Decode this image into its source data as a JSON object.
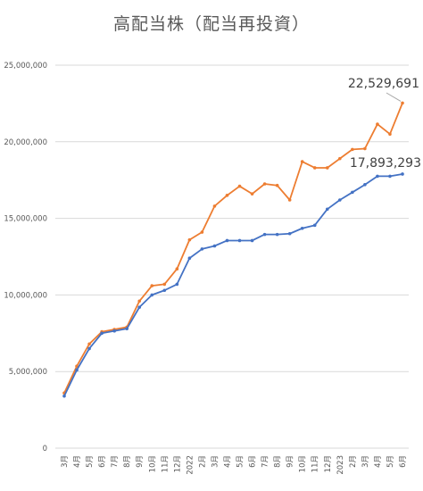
{
  "chart_data": {
    "type": "line",
    "title": "高配当株（配当再投資）",
    "ylim": [
      0,
      25000000
    ],
    "yticks": [
      "0",
      "5,000,000",
      "10,000,000",
      "15,000,000",
      "20,000,000",
      "25,000,000"
    ],
    "categories": [
      "3月",
      "4月",
      "5月",
      "6月",
      "7月",
      "8月",
      "9月",
      "10月",
      "11月",
      "12月",
      "2022",
      "2月",
      "3月",
      "4月",
      "5月",
      "6月",
      "7月",
      "8月",
      "9月",
      "10月",
      "11月",
      "12月",
      "2023",
      "2月",
      "3月",
      "4月",
      "5月",
      "6月"
    ],
    "series": [
      {
        "color": "#ED7D31",
        "values": [
          3600000,
          5350000,
          6800000,
          7600000,
          7750000,
          7900000,
          9600000,
          10600000,
          10700000,
          11700000,
          13600000,
          14100000,
          15800000,
          16500000,
          17100000,
          16600000,
          17250000,
          17150000,
          16200000,
          18700000,
          18300000,
          18300000,
          18900000,
          19500000,
          19550000,
          21150000,
          20500000,
          22529691
        ],
        "end_label": "22,529,691"
      },
      {
        "color": "#4472C4",
        "values": [
          3400000,
          5100000,
          6500000,
          7500000,
          7650000,
          7800000,
          9200000,
          10000000,
          10300000,
          10700000,
          12400000,
          13000000,
          13200000,
          13550000,
          13550000,
          13550000,
          13950000,
          13950000,
          14000000,
          14350000,
          14550000,
          15600000,
          16200000,
          16700000,
          17200000,
          17750000,
          17750000,
          17893293
        ],
        "end_label": "17,893,293"
      }
    ],
    "grid": "horizontal",
    "legend": "none"
  }
}
